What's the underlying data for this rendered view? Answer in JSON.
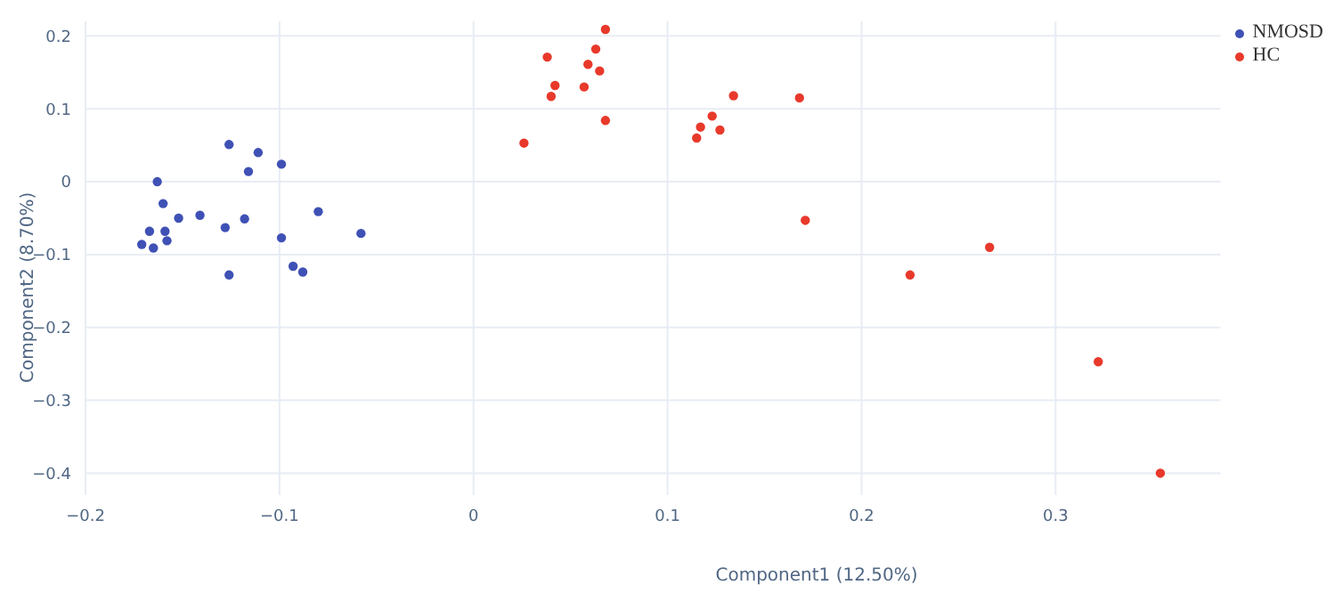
{
  "chart_data": {
    "type": "scatter",
    "xlabel": "Component1 (12.50%)",
    "ylabel": "Component2 (8.70%)",
    "xlim": [
      -0.2,
      0.385
    ],
    "ylim": [
      -0.43,
      0.22
    ],
    "xticks": [
      -0.2,
      -0.1,
      0,
      0.1,
      0.2,
      0.3
    ],
    "yticks": [
      -0.4,
      -0.3,
      -0.2,
      -0.1,
      0,
      0.1,
      0.2
    ],
    "grid": true,
    "legend": "top right",
    "marker": "circle",
    "series": [
      {
        "name": "NMOSD",
        "color": "#3f51b5",
        "x": [
          -0.126,
          -0.111,
          -0.116,
          -0.099,
          -0.163,
          -0.16,
          -0.152,
          -0.141,
          -0.167,
          -0.159,
          -0.171,
          -0.165,
          -0.158,
          -0.128,
          -0.118,
          -0.126,
          -0.099,
          -0.093,
          -0.088,
          -0.08,
          -0.058
        ],
        "values": [
          0.051,
          0.04,
          0.014,
          0.024,
          0,
          -0.03,
          -0.05,
          -0.046,
          -0.068,
          -0.068,
          -0.086,
          -0.091,
          -0.081,
          -0.063,
          -0.051,
          -0.128,
          -0.077,
          -0.116,
          -0.124,
          -0.041,
          -0.071
        ]
      },
      {
        "name": "HC",
        "color": "#e8392b",
        "x": [
          0.068,
          0.038,
          0.063,
          0.059,
          0.065,
          0.042,
          0.057,
          0.04,
          0.068,
          0.026,
          0.134,
          0.168,
          0.123,
          0.117,
          0.127,
          0.115,
          0.171,
          0.225,
          0.266,
          0.322,
          0.354
        ],
        "values": [
          0.209,
          0.171,
          0.182,
          0.161,
          0.152,
          0.132,
          0.13,
          0.117,
          0.084,
          0.053,
          0.118,
          0.115,
          0.09,
          0.075,
          0.071,
          0.06,
          -0.053,
          -0.128,
          -0.09,
          -0.247,
          -0.4
        ]
      }
    ]
  }
}
